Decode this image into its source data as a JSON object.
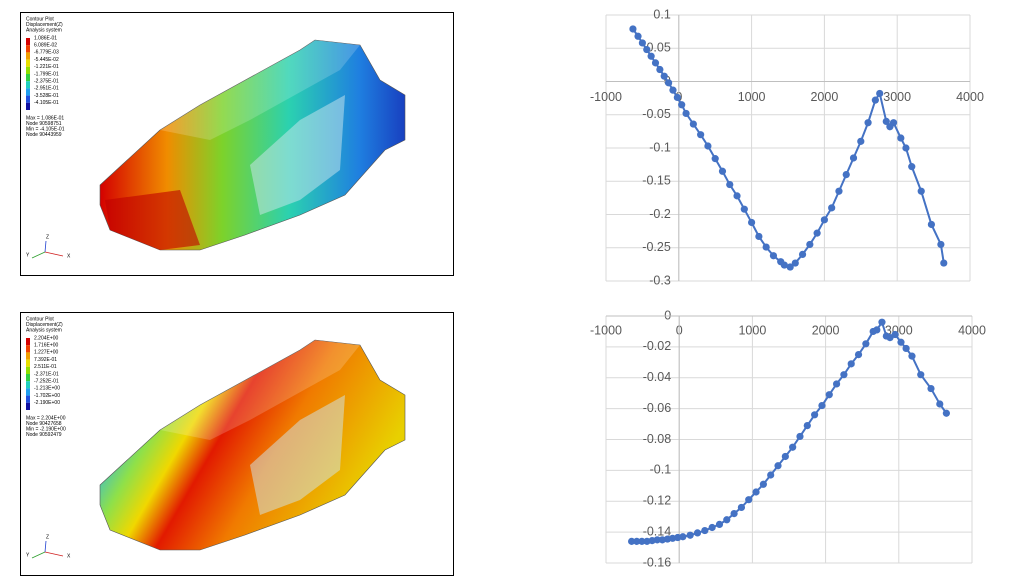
{
  "panels": [
    {
      "title_lines": [
        "Contour Plot",
        "Displacement(Z)",
        "Analysis system"
      ],
      "legend": [
        "1.086E-01",
        "6.089E-02",
        "-6.779E-03",
        "-5.445E-02",
        "-1.221E-01",
        "-1.799E-01",
        "-2.375E-01",
        "-2.951E-01",
        "-3.528E-01",
        "-4.105E-01"
      ],
      "info": [
        "Max = 1.086E-01",
        "Node 90598751",
        "Min = -4.105E-01",
        "Node 90443959"
      ],
      "axes": [
        "Y",
        "Z",
        "X"
      ]
    },
    {
      "title_lines": [
        "Contour Plot",
        "Displacement(Z)",
        "Analysis system"
      ],
      "legend": [
        "2.204E+00",
        "1.716E+00",
        "1.227E+00",
        "7.392E-01",
        "2.511E-01",
        "-2.371E-01",
        "-7.252E-01",
        "-1.213E+00",
        "-1.702E+00",
        "-2.190E+00"
      ],
      "info": [
        "Max = 2.204E+00",
        "Node 90427658",
        "Min = -2.190E+00",
        "Node 90592479"
      ],
      "axes": [
        "Y",
        "Z",
        "X"
      ]
    }
  ],
  "chart_data": [
    {
      "type": "line",
      "x": [
        -630,
        -560,
        -500,
        -440,
        -380,
        -320,
        -260,
        -200,
        -140,
        -80,
        -20,
        40,
        100,
        200,
        300,
        400,
        500,
        600,
        700,
        800,
        900,
        1000,
        1100,
        1200,
        1300,
        1400,
        1450,
        1530,
        1600,
        1700,
        1800,
        1900,
        2000,
        2100,
        2200,
        2300,
        2400,
        2500,
        2600,
        2700,
        2760,
        2850,
        2900,
        2950,
        3050,
        3120,
        3200,
        3330,
        3470,
        3600,
        3640
      ],
      "series": [
        {
          "color": "#4472c4",
          "values": [
            0.079,
            0.068,
            0.058,
            0.048,
            0.038,
            0.028,
            0.018,
            0.008,
            -0.002,
            -0.013,
            -0.024,
            -0.035,
            -0.048,
            -0.064,
            -0.08,
            -0.097,
            -0.116,
            -0.135,
            -0.155,
            -0.172,
            -0.192,
            -0.212,
            -0.233,
            -0.249,
            -0.262,
            -0.271,
            -0.276,
            -0.279,
            -0.273,
            -0.26,
            -0.245,
            -0.228,
            -0.208,
            -0.19,
            -0.165,
            -0.14,
            -0.115,
            -0.09,
            -0.062,
            -0.028,
            -0.018,
            -0.06,
            -0.068,
            -0.062,
            -0.085,
            -0.1,
            -0.128,
            -0.165,
            -0.215,
            -0.245,
            -0.273
          ]
        }
      ],
      "xlim": [
        -1000,
        4000
      ],
      "xticks": [
        -1000,
        0,
        1000,
        2000,
        3000,
        4000
      ],
      "ylim": [
        -0.3,
        0.1
      ],
      "yticks": [
        0.1,
        0.05,
        0,
        -0.05,
        -0.1,
        -0.15,
        -0.2,
        -0.25,
        -0.3
      ],
      "grid": true
    },
    {
      "type": "line",
      "x": [
        -650,
        -580,
        -510,
        -440,
        -370,
        -300,
        -230,
        -160,
        -90,
        -20,
        50,
        150,
        250,
        350,
        450,
        550,
        650,
        750,
        850,
        950,
        1050,
        1150,
        1250,
        1350,
        1450,
        1550,
        1650,
        1750,
        1850,
        1950,
        2050,
        2150,
        2250,
        2350,
        2450,
        2550,
        2650,
        2700,
        2770,
        2830,
        2880,
        2950,
        3030,
        3100,
        3180,
        3300,
        3440,
        3560,
        3650
      ],
      "series": [
        {
          "color": "#4472c4",
          "values": [
            -0.146,
            -0.146,
            -0.146,
            -0.146,
            -0.1455,
            -0.145,
            -0.145,
            -0.1445,
            -0.144,
            -0.1435,
            -0.143,
            -0.142,
            -0.1405,
            -0.139,
            -0.137,
            -0.135,
            -0.132,
            -0.128,
            -0.124,
            -0.119,
            -0.114,
            -0.109,
            -0.103,
            -0.097,
            -0.091,
            -0.085,
            -0.078,
            -0.071,
            -0.064,
            -0.058,
            -0.051,
            -0.044,
            -0.038,
            -0.031,
            -0.025,
            -0.018,
            -0.01,
            -0.009,
            -0.004,
            -0.013,
            -0.014,
            -0.012,
            -0.017,
            -0.021,
            -0.026,
            -0.038,
            -0.047,
            -0.057,
            -0.063
          ]
        }
      ],
      "xlim": [
        -1000,
        4000
      ],
      "xticks": [
        -1000,
        0,
        1000,
        2000,
        3000,
        4000
      ],
      "ylim": [
        -0.16,
        0
      ],
      "yticks": [
        0,
        -0.02,
        -0.04,
        -0.06,
        -0.08,
        -0.1,
        -0.12,
        -0.14,
        -0.16
      ],
      "grid": true
    }
  ]
}
